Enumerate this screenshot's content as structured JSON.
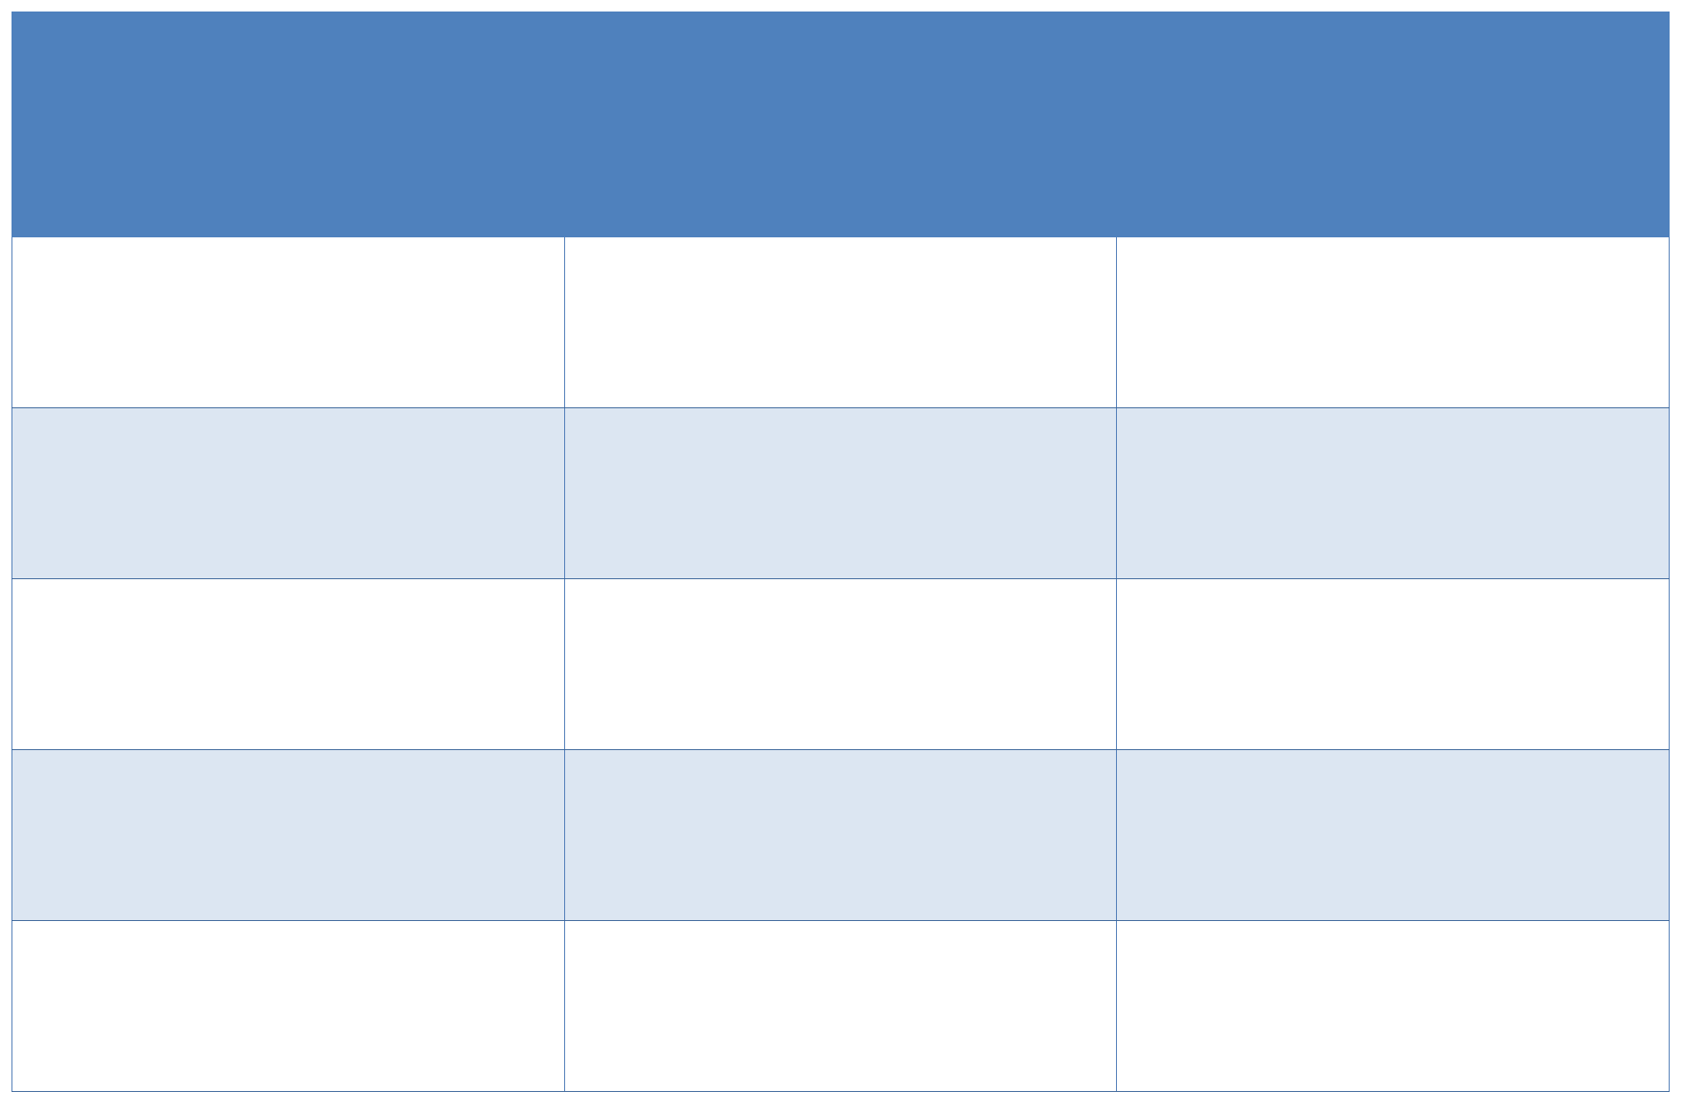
{
  "table": {
    "columns": 3,
    "header": [
      "",
      "",
      ""
    ],
    "rows": [
      [
        "",
        "",
        ""
      ],
      [
        "",
        "",
        ""
      ],
      [
        "",
        "",
        ""
      ],
      [
        "",
        "",
        ""
      ],
      [
        "",
        "",
        ""
      ]
    ]
  },
  "colors": {
    "header_fill": "#4f81bd",
    "band_fill": "#dce6f2",
    "row_fill": "#ffffff",
    "border": "#3a659a"
  }
}
